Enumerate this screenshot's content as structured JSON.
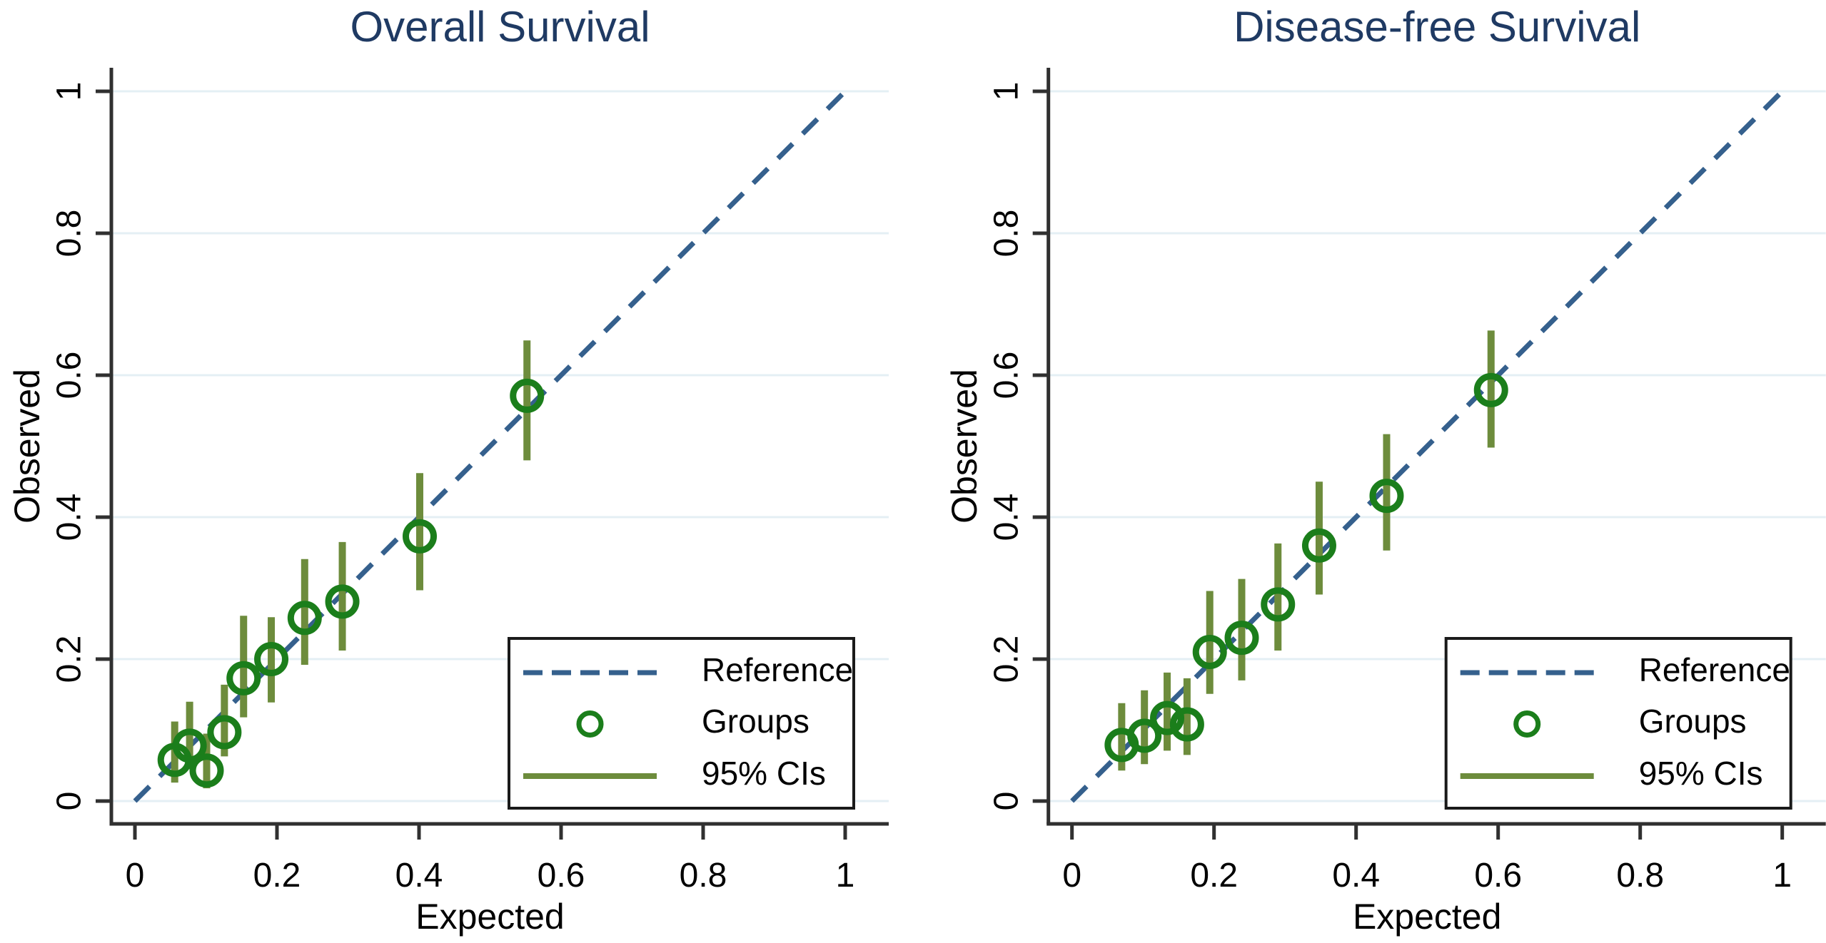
{
  "figure": {
    "background": "#ffffff",
    "colors": {
      "title": "#1f3a63",
      "reference_line": "#35608d",
      "marker": "#1b7e1b",
      "ci": "#6d8c3c",
      "grid": "#e4eff4",
      "axis": "#303030",
      "tick_text": "#000000",
      "label_text": "#000000",
      "legend_border": "#1a1a1a",
      "legend_bg": "#ffffff"
    }
  },
  "chart_data": [
    {
      "type": "scatter",
      "title": "Overall Survival",
      "xlabel": "Expected",
      "ylabel": "Observed",
      "xlim": [
        0,
        1
      ],
      "ylim": [
        0,
        1
      ],
      "tick_values": [
        0,
        0.2,
        0.4,
        0.6,
        0.8,
        1
      ],
      "tick_labels": [
        "0",
        "0.2",
        "0.4",
        "0.6",
        "0.8",
        "1"
      ],
      "grid": "horizontal-only",
      "reference": {
        "from": [
          0,
          0
        ],
        "to": [
          1,
          1
        ],
        "style": "dashed"
      },
      "legend": {
        "position": "bottom-right",
        "entries": [
          {
            "label": "Reference",
            "marker": "dashed-line"
          },
          {
            "label": "Groups",
            "marker": "hollow-circle"
          },
          {
            "label": "95% CIs",
            "marker": "solid-line"
          }
        ]
      },
      "series": [
        {
          "name": "Groups",
          "points": [
            {
              "x": 0.056,
              "y": 0.058,
              "ci_low": 0.026,
              "ci_high": 0.112
            },
            {
              "x": 0.077,
              "y": 0.078,
              "ci_low": 0.045,
              "ci_high": 0.14
            },
            {
              "x": 0.101,
              "y": 0.043,
              "ci_low": 0.018,
              "ci_high": 0.095
            },
            {
              "x": 0.126,
              "y": 0.097,
              "ci_low": 0.063,
              "ci_high": 0.164
            },
            {
              "x": 0.153,
              "y": 0.173,
              "ci_low": 0.118,
              "ci_high": 0.261
            },
            {
              "x": 0.192,
              "y": 0.2,
              "ci_low": 0.139,
              "ci_high": 0.259
            },
            {
              "x": 0.239,
              "y": 0.258,
              "ci_low": 0.192,
              "ci_high": 0.341
            },
            {
              "x": 0.292,
              "y": 0.281,
              "ci_low": 0.212,
              "ci_high": 0.365
            },
            {
              "x": 0.401,
              "y": 0.373,
              "ci_low": 0.297,
              "ci_high": 0.462
            },
            {
              "x": 0.552,
              "y": 0.571,
              "ci_low": 0.48,
              "ci_high": 0.649
            }
          ]
        }
      ]
    },
    {
      "type": "scatter",
      "title": "Disease-free Survival",
      "xlabel": "Expected",
      "ylabel": "Observed",
      "xlim": [
        0,
        1
      ],
      "ylim": [
        0,
        1
      ],
      "tick_values": [
        0,
        0.2,
        0.4,
        0.6,
        0.8,
        1
      ],
      "tick_labels": [
        "0",
        "0.2",
        "0.4",
        "0.6",
        "0.8",
        "1"
      ],
      "grid": "horizontal-only",
      "reference": {
        "from": [
          0,
          0
        ],
        "to": [
          1,
          1
        ],
        "style": "dashed"
      },
      "legend": {
        "position": "bottom-right",
        "entries": [
          {
            "label": "Reference",
            "marker": "dashed-line"
          },
          {
            "label": "Groups",
            "marker": "hollow-circle"
          },
          {
            "label": "95% CIs",
            "marker": "solid-line"
          }
        ]
      },
      "series": [
        {
          "name": "Groups",
          "points": [
            {
              "x": 0.07,
              "y": 0.079,
              "ci_low": 0.043,
              "ci_high": 0.138
            },
            {
              "x": 0.102,
              "y": 0.092,
              "ci_low": 0.052,
              "ci_high": 0.156
            },
            {
              "x": 0.134,
              "y": 0.117,
              "ci_low": 0.071,
              "ci_high": 0.181
            },
            {
              "x": 0.162,
              "y": 0.108,
              "ci_low": 0.065,
              "ci_high": 0.173
            },
            {
              "x": 0.194,
              "y": 0.21,
              "ci_low": 0.151,
              "ci_high": 0.296
            },
            {
              "x": 0.239,
              "y": 0.23,
              "ci_low": 0.17,
              "ci_high": 0.313
            },
            {
              "x": 0.29,
              "y": 0.277,
              "ci_low": 0.212,
              "ci_high": 0.363
            },
            {
              "x": 0.348,
              "y": 0.36,
              "ci_low": 0.291,
              "ci_high": 0.45
            },
            {
              "x": 0.443,
              "y": 0.43,
              "ci_low": 0.353,
              "ci_high": 0.517
            },
            {
              "x": 0.59,
              "y": 0.579,
              "ci_low": 0.498,
              "ci_high": 0.663
            }
          ]
        }
      ]
    }
  ]
}
